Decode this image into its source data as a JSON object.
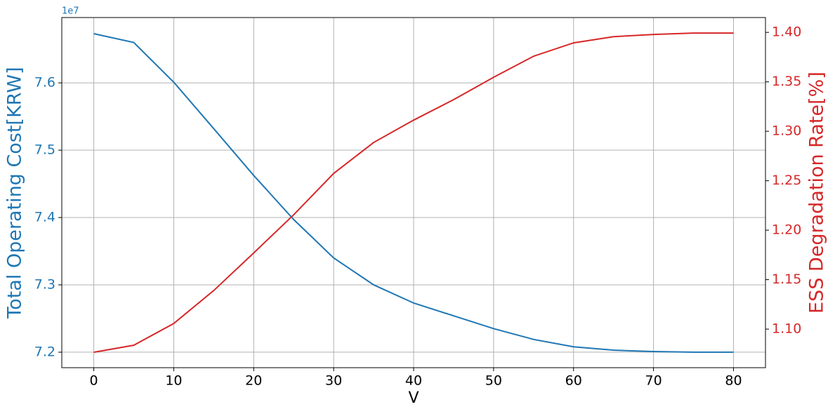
{
  "chart_data": {
    "type": "line",
    "x_label": "V",
    "y_label": "Total Operating Cost[KRW]",
    "y2_label": "ESS Degradation Rate[%]",
    "y_offset_label": "1e7",
    "x": [
      0,
      5,
      10,
      15,
      20,
      25,
      30,
      35,
      40,
      45,
      50,
      55,
      60,
      65,
      70,
      75,
      80
    ],
    "series": [
      {
        "name": "Total Operating Cost",
        "color": "#1f77b4",
        "axis": "y",
        "values": [
          76730000,
          76600000,
          76010000,
          75320000,
          74625000,
          73970000,
          73400000,
          73000000,
          72730000,
          72540000,
          72350000,
          72190000,
          72080000,
          72030000,
          72010000,
          72000000,
          72000000
        ]
      },
      {
        "name": "ESS Degradation Rate",
        "color": "#d62728",
        "axis": "y2",
        "values": [
          1.0766,
          1.0837,
          1.1057,
          1.139,
          1.177,
          1.2156,
          1.2574,
          1.2887,
          1.3113,
          1.332,
          1.3546,
          1.3759,
          1.3894,
          1.3957,
          1.3979,
          1.3993,
          1.3993
        ]
      }
    ],
    "xlim": [
      -4,
      84
    ],
    "xticks": [
      0,
      10,
      20,
      30,
      40,
      50,
      60,
      70,
      80
    ],
    "ylim": [
      71770000,
      76970000
    ],
    "yticks": [
      {
        "value": 72000000,
        "label": "7.2"
      },
      {
        "value": 73000000,
        "label": "7.3"
      },
      {
        "value": 74000000,
        "label": "7.4"
      },
      {
        "value": 75000000,
        "label": "7.5"
      },
      {
        "value": 76000000,
        "label": "7.6"
      }
    ],
    "y2lim": [
      1.061,
      1.415
    ],
    "y2ticks": [
      {
        "value": 1.1,
        "label": "1.10"
      },
      1.15,
      {
        "value": 1.2,
        "label": "1.20"
      },
      1.25,
      {
        "value": 1.3,
        "label": "1.30"
      },
      1.35,
      {
        "value": 1.4,
        "label": "1.40"
      }
    ],
    "grid": true
  }
}
